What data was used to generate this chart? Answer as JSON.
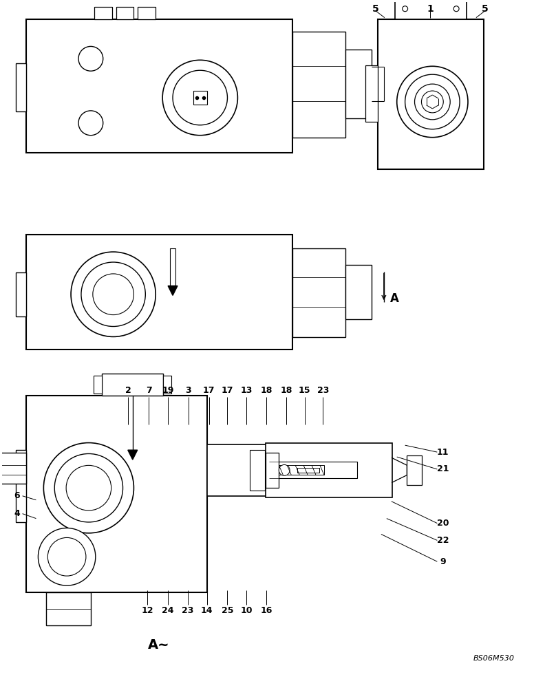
{
  "bg_color": "#ffffff",
  "line_color": "#000000",
  "fig_width": 7.92,
  "fig_height": 10.0,
  "bottom_label": "A~",
  "bottom_code": "BS06M530"
}
